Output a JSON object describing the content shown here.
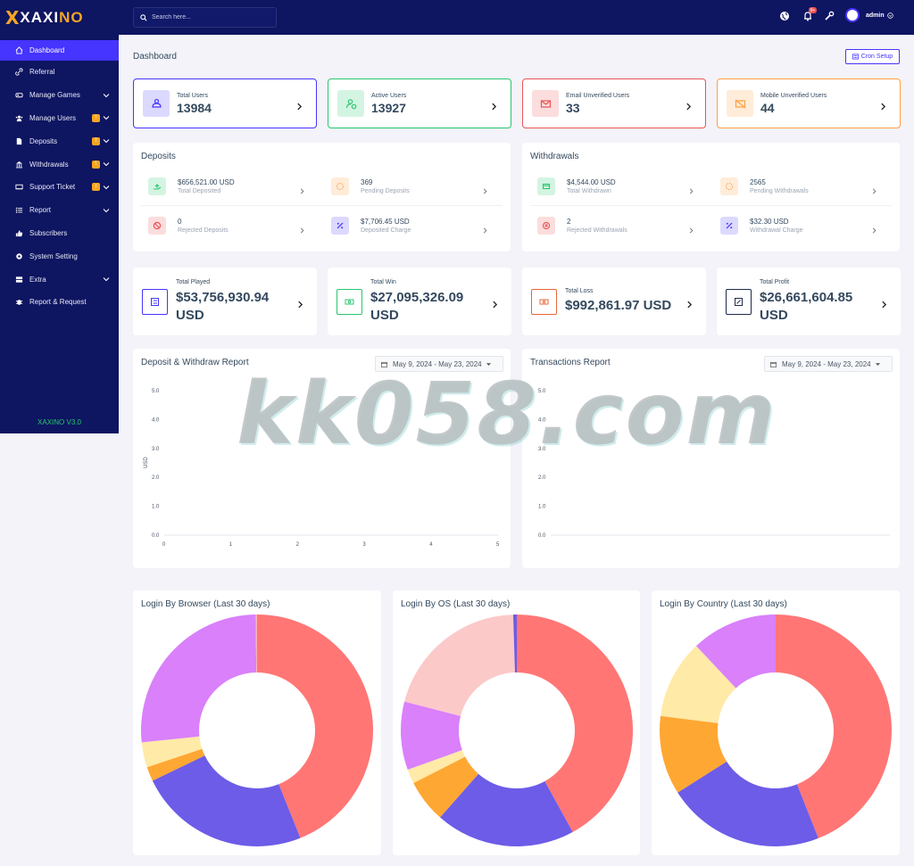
{
  "brand": {
    "logo_x": "X",
    "logo_text_a": "XAXI",
    "logo_text_b": "NO",
    "version_label": "XAXINO V3.0"
  },
  "sidebar": {
    "items": [
      {
        "label": "Dashboard",
        "icon": "home-icon"
      },
      {
        "label": "Referral",
        "icon": "link-icon"
      },
      {
        "label": "Manage Games",
        "icon": "gamepad-icon"
      },
      {
        "label": "Manage Users",
        "icon": "users-icon",
        "badge": "!"
      },
      {
        "label": "Deposits",
        "icon": "file-icon",
        "badge": "!"
      },
      {
        "label": "Withdrawals",
        "icon": "bank-icon",
        "badge": "!"
      },
      {
        "label": "Support Ticket",
        "icon": "ticket-icon",
        "badge": "!"
      },
      {
        "label": "Report",
        "icon": "list-icon"
      },
      {
        "label": "Subscribers",
        "icon": "thumbs-up-icon"
      },
      {
        "label": "System Setting",
        "icon": "cog-icon"
      },
      {
        "label": "Extra",
        "icon": "server-icon"
      },
      {
        "label": "Report & Request",
        "icon": "bug-icon"
      }
    ]
  },
  "topbar": {
    "search_placeholder": "Search here...",
    "notif_count": "9+",
    "admin_name": "admin"
  },
  "page": {
    "title": "Dashboard",
    "cron_label": "Cron Setup"
  },
  "stats": [
    {
      "label": "Total Users",
      "value": "13984",
      "color": "#4634ff"
    },
    {
      "label": "Active Users",
      "value": "13927",
      "color": "#28c76f"
    },
    {
      "label": "Email Unverified Users",
      "value": "33",
      "color": "#ea5455"
    },
    {
      "label": "Mobile Unverified Users",
      "value": "44",
      "color": "#ff9f43"
    }
  ],
  "deposits": {
    "title": "Deposits",
    "items": [
      {
        "value": "$656,521.00 USD",
        "label": "Total Deposited"
      },
      {
        "value": "369",
        "label": "Pending Deposits"
      },
      {
        "value": "0",
        "label": "Rejected Deposits"
      },
      {
        "value": "$7,706.45 USD",
        "label": "Deposited Charge"
      }
    ]
  },
  "withdrawals": {
    "title": "Withdrawals",
    "items": [
      {
        "value": "$4,544.00 USD",
        "label": "Total Withdrawn"
      },
      {
        "value": "2565",
        "label": "Pending Withdrawals"
      },
      {
        "value": "2",
        "label": "Rejected Withdrawals"
      },
      {
        "value": "$32.30 USD",
        "label": "Withdrawal Charge"
      }
    ]
  },
  "game_stats": [
    {
      "label": "Total Played",
      "value": "$53,756,930.94 USD",
      "color": "#4634ff"
    },
    {
      "label": "Total Win",
      "value": "$27,095,326.09 USD",
      "color": "#28c76f"
    },
    {
      "label": "Total Loss",
      "value": "$992,861.97 USD",
      "color": "#e8663a"
    },
    {
      "label": "Total Profit",
      "value": "$26,661,604.85 USD",
      "color": "#1e2a4a"
    }
  ],
  "reports": {
    "deposit_withdraw": {
      "title": "Deposit & Withdraw Report",
      "date_range": "May 9, 2024 - May 23, 2024"
    },
    "transactions": {
      "title": "Transactions Report",
      "date_range": "May 9, 2024 - May 23, 2024"
    }
  },
  "chart_data": [
    {
      "type": "line",
      "title": "Deposit & Withdraw Report",
      "ylabel": "USD",
      "xlabel": "",
      "x": [
        0,
        1,
        2,
        3,
        4,
        5
      ],
      "y_ticks": [
        "5.0",
        "4.0",
        "3.0",
        "2.0",
        "1.0",
        "0.0"
      ],
      "ylim": [
        0,
        5
      ],
      "series": []
    },
    {
      "type": "line",
      "title": "Transactions Report",
      "ylabel": "",
      "xlabel": "",
      "x": [],
      "y_ticks": [
        "5.0",
        "4.0",
        "3.0",
        "2.0",
        "1.0",
        "0.0"
      ],
      "ylim": [
        0,
        5
      ],
      "series": []
    },
    {
      "type": "pie",
      "title": "Login By Browser (Last 30 days)",
      "slices": [
        {
          "value": 44,
          "color": "#ff7675"
        },
        {
          "value": 24,
          "color": "#6c5ce7"
        },
        {
          "value": 2,
          "color": "#ffa733"
        },
        {
          "value": 3.5,
          "color": "#ffeaa7"
        },
        {
          "value": 26.5,
          "color": "#d980fa"
        },
        {
          "value": 0.2,
          "color": "#fab1b1"
        }
      ]
    },
    {
      "type": "pie",
      "title": "Login By OS (Last 30 days)",
      "slices": [
        {
          "value": 42,
          "color": "#ff7675"
        },
        {
          "value": 19.5,
          "color": "#6c5ce7"
        },
        {
          "value": 6,
          "color": "#ffa733"
        },
        {
          "value": 2,
          "color": "#ffeaa7"
        },
        {
          "value": 9.5,
          "color": "#d980fa"
        },
        {
          "value": 20.5,
          "color": "#fcc9c9"
        },
        {
          "value": 0.5,
          "color": "#6c5ce7"
        }
      ]
    },
    {
      "type": "pie",
      "title": "Login By Country (Last 30 days)",
      "slices": [
        {
          "value": 44,
          "color": "#ff7675"
        },
        {
          "value": 22,
          "color": "#6c5ce7"
        },
        {
          "value": 11,
          "color": "#ffa733"
        },
        {
          "value": 11,
          "color": "#ffeaa7"
        },
        {
          "value": 12,
          "color": "#d980fa"
        }
      ]
    }
  ],
  "watermark": "kk058.com"
}
